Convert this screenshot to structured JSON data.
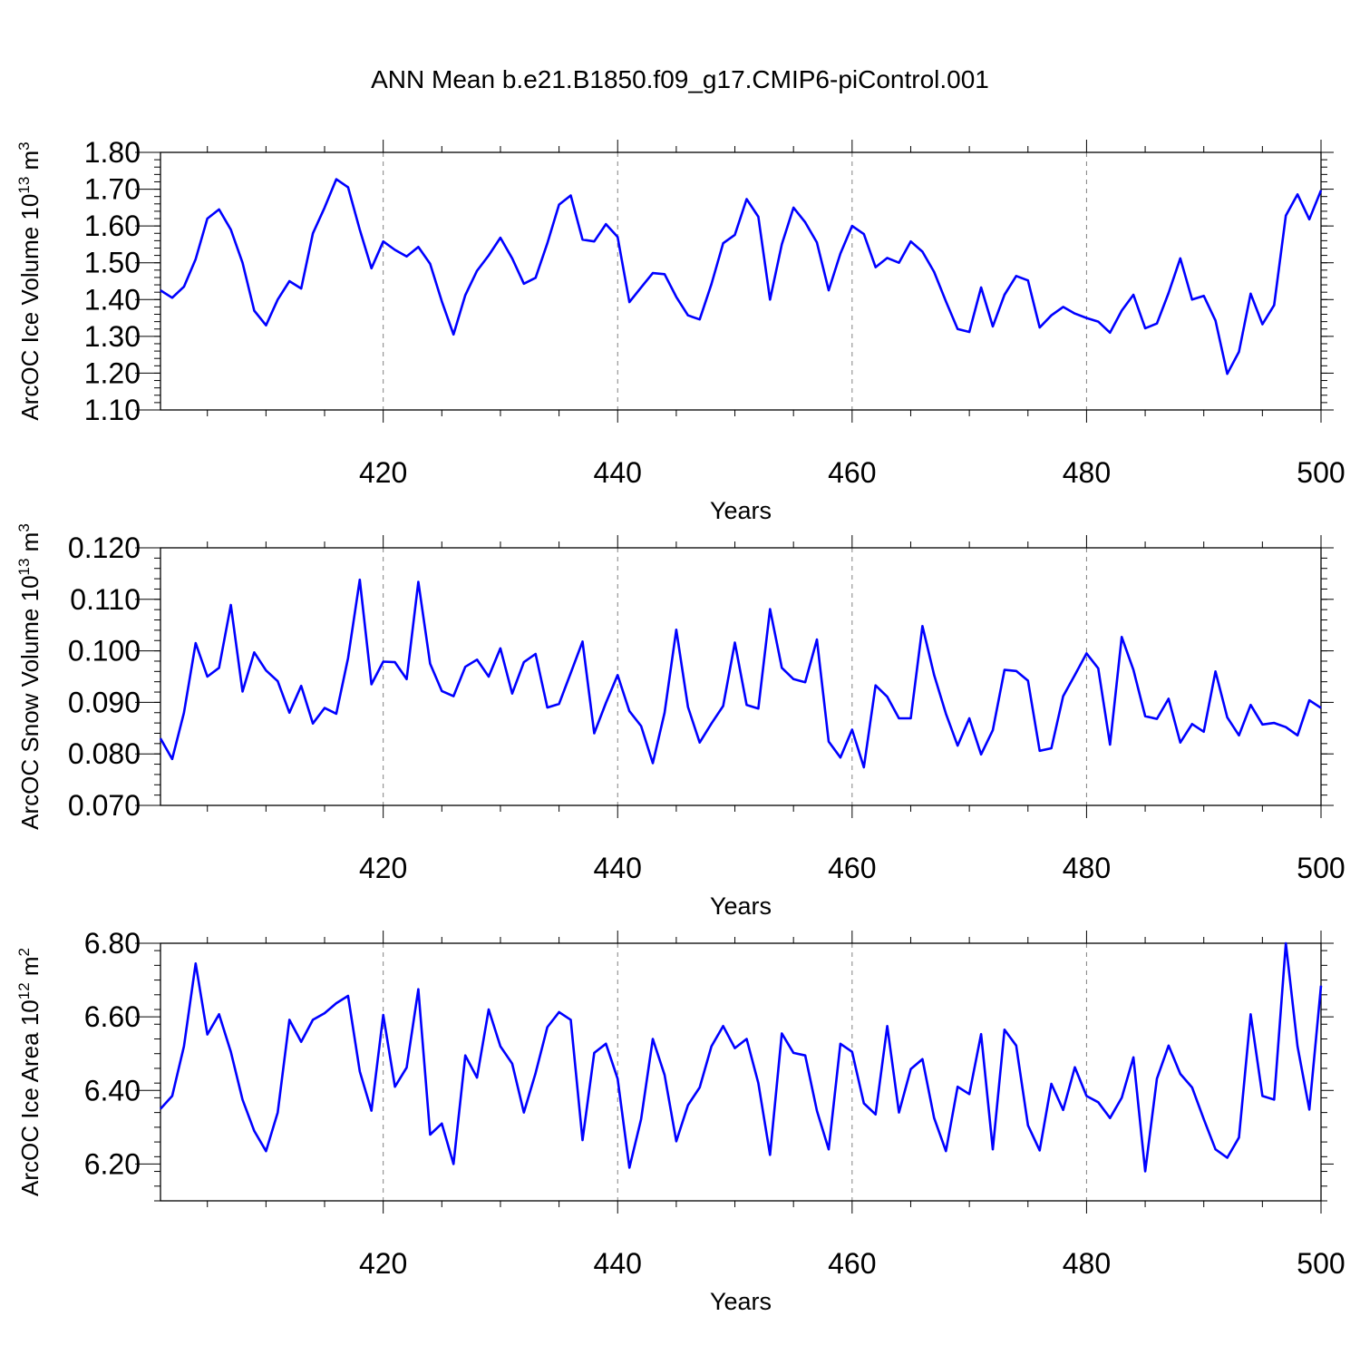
{
  "title": "ANN Mean b.e21.B1850.f09_g17.CMIP6-piControl.001",
  "colors": {
    "series": "#0000ff",
    "axes": "#000000",
    "refline": "#808080"
  },
  "chart_data": [
    {
      "type": "line",
      "ylabel_main": "ArcOC Ice Volume 10",
      "ylabel_exp": "13",
      "ylabel_unit": "m",
      "ylabel_unit_exp": "3",
      "xlabel": "Years",
      "xlim": [
        401,
        500
      ],
      "ylim": [
        1.1,
        1.8
      ],
      "yticks": [
        "1.10",
        "1.20",
        "1.30",
        "1.40",
        "1.50",
        "1.60",
        "1.70",
        "1.80"
      ],
      "xticks": [
        "420",
        "440",
        "460",
        "480",
        "500"
      ],
      "grid": "dashed vertical lines at 420, 440, 460, 480",
      "x": [
        401,
        402,
        403,
        404,
        405,
        406,
        407,
        408,
        409,
        410,
        411,
        412,
        413,
        414,
        415,
        416,
        417,
        418,
        419,
        420,
        421,
        422,
        423,
        424,
        425,
        426,
        427,
        428,
        429,
        430,
        431,
        432,
        433,
        434,
        435,
        436,
        437,
        438,
        439,
        440,
        441,
        442,
        443,
        444,
        445,
        446,
        447,
        448,
        449,
        450,
        451,
        452,
        453,
        454,
        455,
        456,
        457,
        458,
        459,
        460,
        461,
        462,
        463,
        464,
        465,
        466,
        467,
        468,
        469,
        470,
        471,
        472,
        473,
        474,
        475,
        476,
        477,
        478,
        479,
        480,
        481,
        482,
        483,
        484,
        485,
        486,
        487,
        488,
        489,
        490,
        491,
        492,
        493,
        494,
        495,
        496,
        497,
        498,
        499,
        500
      ],
      "values": [
        1.425,
        1.405,
        1.435,
        1.51,
        1.62,
        1.645,
        1.59,
        1.5,
        1.37,
        1.33,
        1.4,
        1.45,
        1.43,
        1.58,
        1.65,
        1.727,
        1.705,
        1.59,
        1.485,
        1.558,
        1.535,
        1.517,
        1.543,
        1.497,
        1.395,
        1.305,
        1.412,
        1.478,
        1.52,
        1.568,
        1.512,
        1.443,
        1.459,
        1.553,
        1.658,
        1.683,
        1.563,
        1.558,
        1.605,
        1.57,
        1.393,
        1.433,
        1.472,
        1.469,
        1.407,
        1.357,
        1.346,
        1.442,
        1.553,
        1.576,
        1.673,
        1.625,
        1.4,
        1.55,
        1.65,
        1.61,
        1.555,
        1.425,
        1.525,
        1.6,
        1.578,
        1.488,
        1.513,
        1.5,
        1.558,
        1.53,
        1.475,
        1.395,
        1.32,
        1.312,
        1.433,
        1.327,
        1.413,
        1.464,
        1.452,
        1.324,
        1.357,
        1.38,
        1.362,
        1.35,
        1.34,
        1.31,
        1.37,
        1.413,
        1.322,
        1.335,
        1.418,
        1.512,
        1.4,
        1.41,
        1.343,
        1.198,
        1.258,
        1.416,
        1.333,
        1.385,
        1.628,
        1.686,
        1.618,
        1.697
      ]
    },
    {
      "type": "line",
      "ylabel_main": "ArcOC Snow Volume 10",
      "ylabel_exp": "13",
      "ylabel_unit": "m",
      "ylabel_unit_exp": "3",
      "xlabel": "Years",
      "xlim": [
        401,
        500
      ],
      "ylim": [
        0.07,
        0.12
      ],
      "yticks": [
        "0.070",
        "0.080",
        "0.090",
        "0.100",
        "0.110",
        "0.120"
      ],
      "xticks": [
        "420",
        "440",
        "460",
        "480",
        "500"
      ],
      "grid": "dashed vertical lines at 420, 440, 460, 480",
      "x": [
        401,
        402,
        403,
        404,
        405,
        406,
        407,
        408,
        409,
        410,
        411,
        412,
        413,
        414,
        415,
        416,
        417,
        418,
        419,
        420,
        421,
        422,
        423,
        424,
        425,
        426,
        427,
        428,
        429,
        430,
        431,
        432,
        433,
        434,
        435,
        436,
        437,
        438,
        439,
        440,
        441,
        442,
        443,
        444,
        445,
        446,
        447,
        448,
        449,
        450,
        451,
        452,
        453,
        454,
        455,
        456,
        457,
        458,
        459,
        460,
        461,
        462,
        463,
        464,
        465,
        466,
        467,
        468,
        469,
        470,
        471,
        472,
        473,
        474,
        475,
        476,
        477,
        478,
        479,
        480,
        481,
        482,
        483,
        484,
        485,
        486,
        487,
        488,
        489,
        490,
        491,
        492,
        493,
        494,
        495,
        496,
        497,
        498,
        499,
        500
      ],
      "values": [
        0.083,
        0.079,
        0.088,
        0.1015,
        0.095,
        0.0967,
        0.1089,
        0.0921,
        0.0997,
        0.0962,
        0.0941,
        0.088,
        0.0932,
        0.0859,
        0.0889,
        0.0878,
        0.0986,
        0.1138,
        0.0935,
        0.0979,
        0.0978,
        0.0945,
        0.1134,
        0.0975,
        0.0922,
        0.0912,
        0.0969,
        0.0983,
        0.095,
        0.1005,
        0.0917,
        0.0978,
        0.0994,
        0.089,
        0.0897,
        0.0957,
        0.1018,
        0.084,
        0.0899,
        0.0953,
        0.0883,
        0.0854,
        0.0782,
        0.088,
        0.1041,
        0.0891,
        0.0822,
        0.0859,
        0.0893,
        0.1016,
        0.0895,
        0.0888,
        0.1081,
        0.0967,
        0.0945,
        0.0939,
        0.1022,
        0.0824,
        0.0793,
        0.0847,
        0.0774,
        0.0933,
        0.0911,
        0.0869,
        0.0869,
        0.1048,
        0.0953,
        0.0878,
        0.0816,
        0.0869,
        0.0799,
        0.0846,
        0.0963,
        0.0961,
        0.0942,
        0.0806,
        0.0811,
        0.0912,
        0.0953,
        0.0995,
        0.0966,
        0.0818,
        0.1027,
        0.0963,
        0.0873,
        0.0868,
        0.0907,
        0.0822,
        0.0858,
        0.0843,
        0.096,
        0.0871,
        0.0836,
        0.0895,
        0.0857,
        0.086,
        0.0852,
        0.0836,
        0.0904,
        0.0889
      ]
    },
    {
      "type": "line",
      "ylabel_main": "ArcOC Ice Area 10",
      "ylabel_exp": "12",
      "ylabel_unit": "m",
      "ylabel_unit_exp": "2",
      "xlabel": "Years",
      "xlim": [
        401,
        500
      ],
      "ylim": [
        6.1,
        6.8
      ],
      "yticks": [
        "6.20",
        "6.40",
        "6.60",
        "6.80"
      ],
      "xticks": [
        "420",
        "440",
        "460",
        "480",
        "500"
      ],
      "grid": "dashed vertical lines at 420, 440, 460, 480",
      "x": [
        401,
        402,
        403,
        404,
        405,
        406,
        407,
        408,
        409,
        410,
        411,
        412,
        413,
        414,
        415,
        416,
        417,
        418,
        419,
        420,
        421,
        422,
        423,
        424,
        425,
        426,
        427,
        428,
        429,
        430,
        431,
        432,
        433,
        434,
        435,
        436,
        437,
        438,
        439,
        440,
        441,
        442,
        443,
        444,
        445,
        446,
        447,
        448,
        449,
        450,
        451,
        452,
        453,
        454,
        455,
        456,
        457,
        458,
        459,
        460,
        461,
        462,
        463,
        464,
        465,
        466,
        467,
        468,
        469,
        470,
        471,
        472,
        473,
        474,
        475,
        476,
        477,
        478,
        479,
        480,
        481,
        482,
        483,
        484,
        485,
        486,
        487,
        488,
        489,
        490,
        491,
        492,
        493,
        494,
        495,
        496,
        497,
        498,
        499,
        500
      ],
      "values": [
        6.35,
        6.385,
        6.52,
        6.745,
        6.552,
        6.607,
        6.505,
        6.375,
        6.29,
        6.235,
        6.34,
        6.592,
        6.532,
        6.592,
        6.61,
        6.637,
        6.657,
        6.452,
        6.345,
        6.605,
        6.41,
        6.462,
        6.675,
        6.28,
        6.31,
        6.2,
        6.495,
        6.435,
        6.62,
        6.52,
        6.473,
        6.34,
        6.447,
        6.572,
        6.613,
        6.592,
        6.265,
        6.502,
        6.527,
        6.432,
        6.19,
        6.322,
        6.54,
        6.442,
        6.262,
        6.36,
        6.408,
        6.52,
        6.575,
        6.515,
        6.54,
        6.42,
        6.225,
        6.555,
        6.502,
        6.495,
        6.345,
        6.24,
        6.527,
        6.505,
        6.365,
        6.335,
        6.575,
        6.34,
        6.458,
        6.485,
        6.325,
        6.235,
        6.41,
        6.39,
        6.553,
        6.24,
        6.565,
        6.522,
        6.305,
        6.237,
        6.418,
        6.347,
        6.463,
        6.385,
        6.368,
        6.325,
        6.38,
        6.49,
        6.18,
        6.432,
        6.522,
        6.445,
        6.408,
        6.322,
        6.24,
        6.217,
        6.272,
        6.607,
        6.385,
        6.375,
        6.8,
        6.52,
        6.348,
        6.685
      ]
    }
  ]
}
